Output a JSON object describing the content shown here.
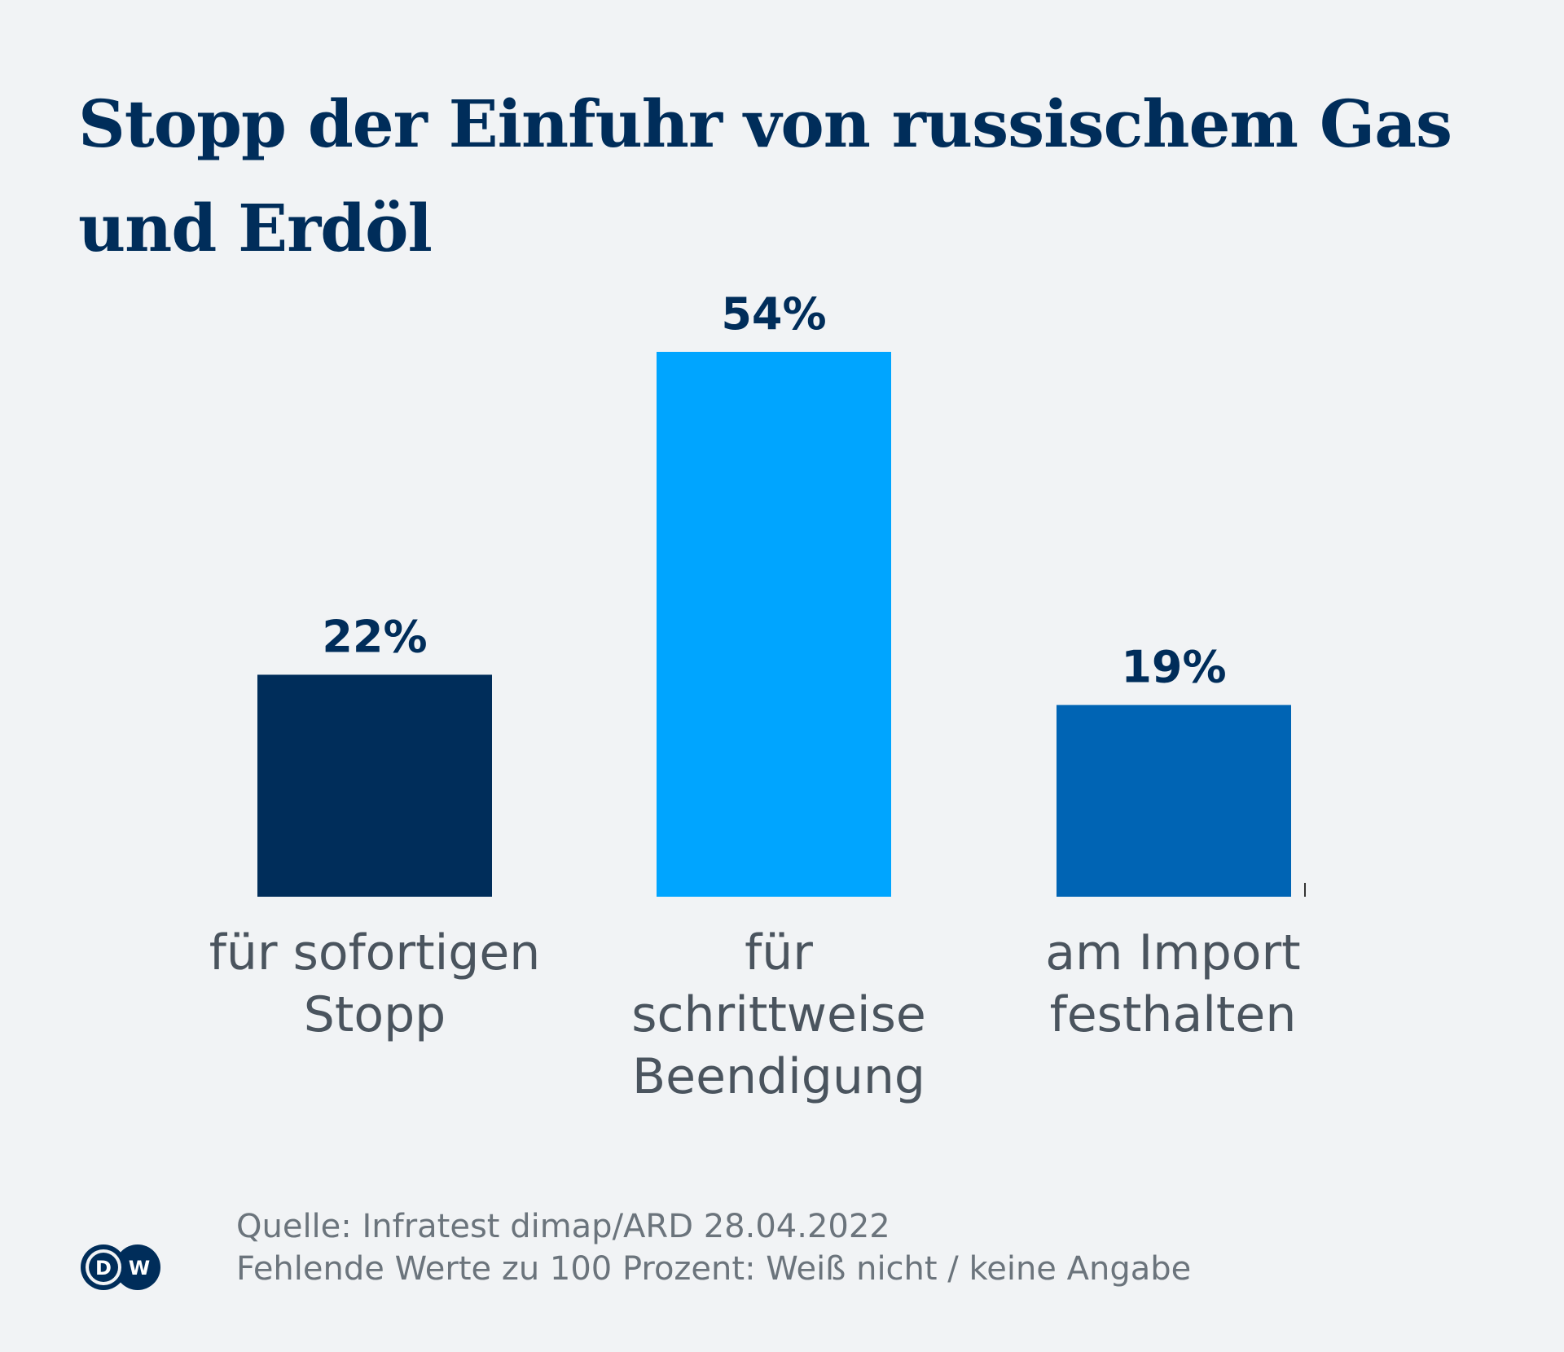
{
  "chart_data": {
    "type": "bar",
    "title": "Stopp der Einfuhr von russischem Gas und Erdöl",
    "categories": [
      "für sofortigen Stopp",
      "für schrittweise Beendigung",
      "am Import festhalten"
    ],
    "category_lines": [
      [
        "für sofortigen",
        "Stopp"
      ],
      [
        "für",
        "schrittweise",
        "Beendigung"
      ],
      [
        "am Import",
        "festhalten"
      ]
    ],
    "values": [
      22,
      54,
      19
    ],
    "value_labels": [
      "22%",
      "54%",
      "19%"
    ],
    "colors": [
      "#002d5a",
      "#00a5ff",
      "#0064b4"
    ],
    "unit": "%",
    "ylim": [
      0,
      54
    ],
    "grid": false,
    "legend": "none"
  },
  "footer": {
    "source": "Quelle: Infratest dimap/ARD 28.04.2022",
    "note": "Fehlende Werte zu 100 Prozent: Weiß nicht / keine Angabe"
  },
  "logo": {
    "text": "DW",
    "color": "#002d5a"
  }
}
